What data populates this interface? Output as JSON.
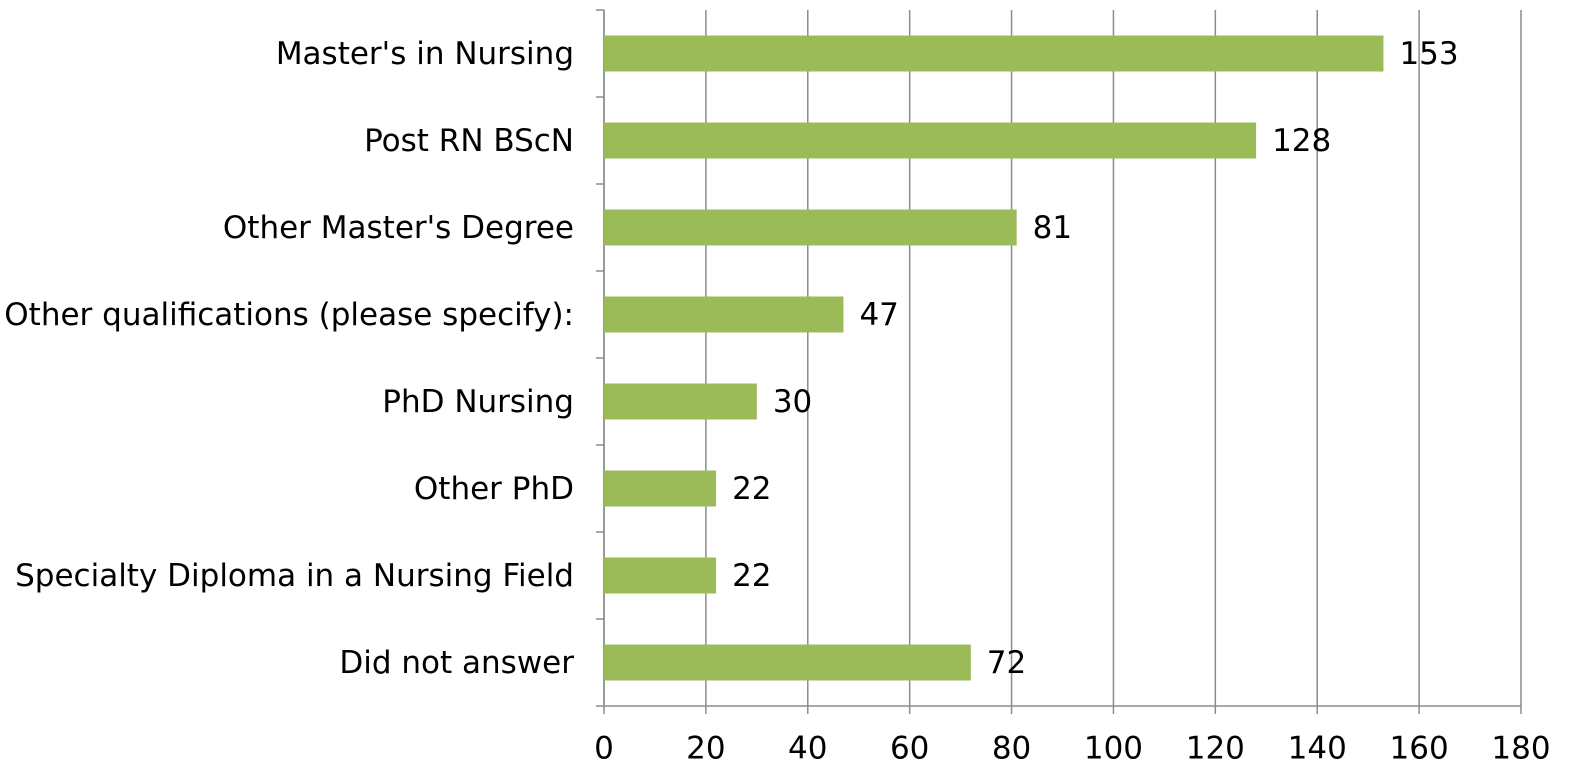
{
  "chart_data": {
    "type": "bar",
    "orientation": "horizontal",
    "categories": [
      "Master's in Nursing",
      "Post RN BScN",
      "Other Master's Degree",
      "Other qualifications (please specify):",
      "PhD Nursing",
      "Other PhD",
      "Specialty Diploma in a Nursing Field",
      "Did not answer"
    ],
    "values": [
      153,
      128,
      81,
      47,
      30,
      22,
      22,
      72
    ],
    "color": "#9bbb59",
    "xlim": [
      0,
      180
    ],
    "xticks": [
      0,
      20,
      40,
      60,
      80,
      100,
      120,
      140,
      160,
      180
    ],
    "grid": true
  }
}
